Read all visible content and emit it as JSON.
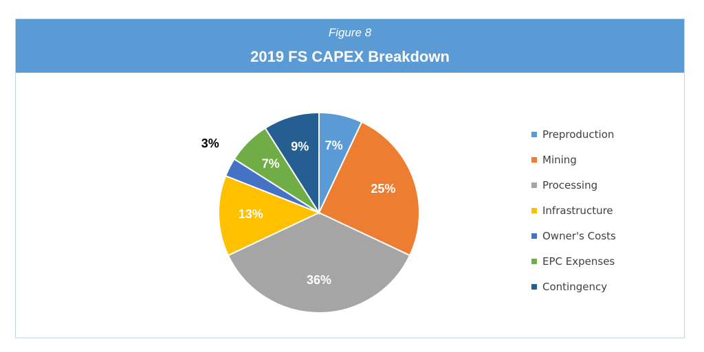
{
  "header": {
    "figure_label": "Figure 8",
    "title": "2019 FS CAPEX Breakdown"
  },
  "chart_data": {
    "type": "pie",
    "title": "2019 FS CAPEX Breakdown",
    "legend_position": "right",
    "categories": [
      "Preproduction",
      "Mining",
      "Processing",
      "Infrastructure",
      "Owner's Costs",
      "EPC Expenses",
      "Contingency"
    ],
    "values": [
      7,
      25,
      36,
      13,
      3,
      7,
      9
    ],
    "labels": [
      "7%",
      "25%",
      "36%",
      "13%",
      "3%",
      "7%",
      "9%"
    ],
    "colors": [
      "#5b9bd5",
      "#ed7d31",
      "#a5a5a5",
      "#ffc000",
      "#4472c4",
      "#70ad47",
      "#255e91"
    ],
    "label_colors": [
      "#ffffff",
      "#ffffff",
      "#ffffff",
      "#ffffff",
      "#000000",
      "#ffffff",
      "#ffffff"
    ],
    "label_outside": [
      false,
      false,
      false,
      false,
      true,
      false,
      false
    ]
  }
}
